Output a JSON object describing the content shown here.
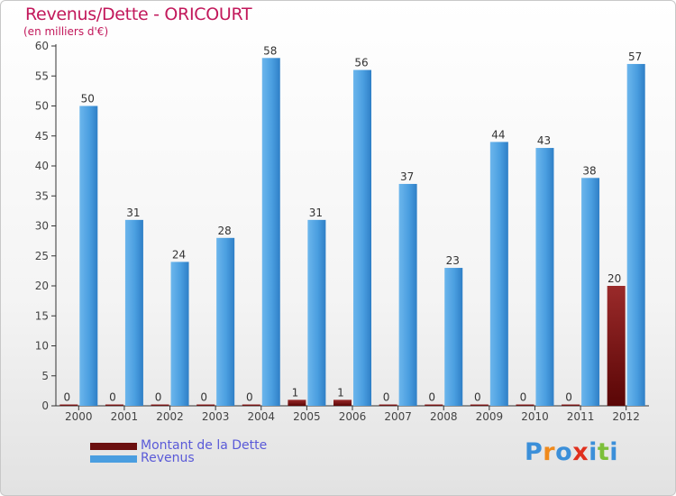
{
  "header": {
    "title": "Revenus/Dette - ORICOURT",
    "subtitle": "(en milliers d'€)"
  },
  "chart_data": {
    "type": "bar",
    "title": "Revenus/Dette - ORICOURT",
    "ylabel": "(en milliers d'€)",
    "xlabel": "",
    "categories": [
      "2000",
      "2001",
      "2002",
      "2003",
      "2004",
      "2005",
      "2006",
      "2007",
      "2008",
      "2009",
      "2010",
      "2011",
      "2012"
    ],
    "series": [
      {
        "name": "Montant de la Dette",
        "color": "#6b0f0f",
        "values": [
          0,
          0,
          0,
          0,
          0,
          1,
          1,
          0,
          0,
          0,
          0,
          0,
          20
        ]
      },
      {
        "name": "Revenus",
        "color": "#4a9ee0",
        "values": [
          50,
          31,
          24,
          28,
          58,
          31,
          56,
          37,
          23,
          44,
          43,
          38,
          57
        ]
      }
    ],
    "ylim": [
      0,
      60
    ],
    "yticks": [
      0,
      5,
      10,
      15,
      20,
      25,
      30,
      35,
      40,
      45,
      50,
      55,
      60
    ],
    "grid": false,
    "legend": "bottom-left"
  },
  "legend": {
    "items": [
      {
        "label": "Montant de la Dette",
        "color": "#6b0f0f"
      },
      {
        "label": "Revenus",
        "color": "#4a9ee0"
      }
    ]
  },
  "branding": {
    "logo_letters": [
      "P",
      "r",
      "o",
      "x",
      "i",
      "t",
      "i"
    ],
    "logo_colors": [
      "#3b8fd9",
      "#f08a1c",
      "#3b8fd9",
      "#e0301e",
      "#3b8fd9",
      "#7cbf3a",
      "#3b8fd9"
    ]
  }
}
